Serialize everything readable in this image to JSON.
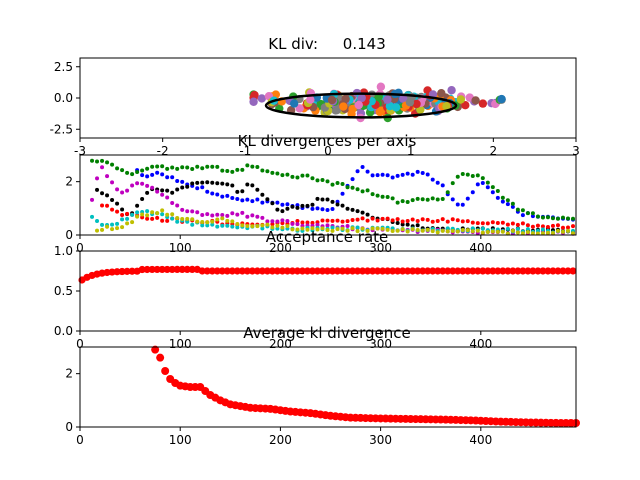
{
  "figure": {
    "background": "#ffffff"
  },
  "chart_data": [
    {
      "type": "scatter",
      "title_label": "KL div:",
      "title_value": "0.143",
      "xlim": [
        -3,
        3
      ],
      "ylim": [
        -3.2,
        3.2
      ],
      "xticks": [
        "-3",
        "-2",
        "-1",
        "0",
        "1",
        "2",
        "3"
      ],
      "yticks": [
        "2.5",
        "0.0",
        "-2.5"
      ],
      "point_colors": [
        "#1f77b4",
        "#ff7f0e",
        "#2ca02c",
        "#d62728",
        "#9467bd",
        "#8c564b",
        "#e377c2",
        "#7f7f7f",
        "#bcbd22",
        "#17becf"
      ],
      "cloud": {
        "x_center": 0.6,
        "y_center": -0.4,
        "x_spread": 1.1,
        "y_spread": 0.7,
        "count": 320
      },
      "ellipse": {
        "cx": 0.4,
        "cy": -0.6,
        "rx": 1.15,
        "ry": 0.95,
        "color": "#000000"
      }
    },
    {
      "type": "scatter",
      "title": "KL divergences per axis",
      "xlim": [
        0,
        495
      ],
      "ylim": [
        0,
        3
      ],
      "xticks": [
        "0",
        "100",
        "200",
        "300",
        "400"
      ],
      "yticks": [
        "0",
        "2"
      ],
      "series": [
        {
          "color": "#0000ff",
          "points": [
            [
              55,
              2.5
            ],
            [
              60,
              2.2
            ],
            [
              80,
              2.3
            ],
            [
              100,
              2.0
            ],
            [
              150,
              1.4
            ],
            [
              200,
              1.2
            ],
            [
              250,
              0.9
            ],
            [
              280,
              2.6
            ],
            [
              290,
              2.3
            ],
            [
              300,
              2.2
            ],
            [
              320,
              2.2
            ],
            [
              330,
              2.3
            ],
            [
              340,
              2.4
            ],
            [
              360,
              1.9
            ],
            [
              380,
              1.0
            ],
            [
              400,
              2.0
            ],
            [
              420,
              1.3
            ],
            [
              440,
              0.8
            ],
            [
              460,
              0.7
            ],
            [
              480,
              0.65
            ],
            [
              495,
              0.6
            ]
          ]
        },
        {
          "color": "#008000",
          "points": [
            [
              10,
              2.8
            ],
            [
              30,
              2.7
            ],
            [
              50,
              2.2
            ],
            [
              70,
              2.6
            ],
            [
              90,
              2.5
            ],
            [
              110,
              2.5
            ],
            [
              130,
              2.6
            ],
            [
              150,
              2.3
            ],
            [
              170,
              2.6
            ],
            [
              190,
              2.3
            ],
            [
              210,
              2.2
            ],
            [
              225,
              2.2
            ],
            [
              300,
              1.5
            ],
            [
              320,
              1.2
            ],
            [
              340,
              1.4
            ],
            [
              360,
              1.3
            ],
            [
              380,
              2.3
            ],
            [
              400,
              2.2
            ],
            [
              420,
              1.5
            ],
            [
              440,
              0.9
            ],
            [
              460,
              0.7
            ],
            [
              480,
              0.6
            ],
            [
              495,
              0.55
            ]
          ]
        },
        {
          "color": "#000000",
          "points": [
            [
              15,
              1.8
            ],
            [
              30,
              1.4
            ],
            [
              40,
              1.0
            ],
            [
              50,
              0.7
            ],
            [
              70,
              1.7
            ],
            [
              90,
              1.6
            ],
            [
              110,
              1.9
            ],
            [
              130,
              2.0
            ],
            [
              150,
              1.9
            ],
            [
              160,
              1.5
            ],
            [
              170,
              2.0
            ],
            [
              180,
              1.6
            ],
            [
              190,
              1.2
            ],
            [
              200,
              0.9
            ],
            [
              210,
              1.0
            ],
            [
              230,
              1.1
            ],
            [
              240,
              1.4
            ],
            [
              300,
              0.6
            ],
            [
              340,
              0.3
            ],
            [
              380,
              0.2
            ],
            [
              420,
              0.2
            ],
            [
              495,
              0.15
            ]
          ]
        },
        {
          "color": "#ff0000",
          "points": [
            [
              20,
              1.2
            ],
            [
              40,
              0.8
            ],
            [
              80,
              0.6
            ],
            [
              120,
              0.5
            ],
            [
              160,
              0.4
            ],
            [
              200,
              0.45
            ],
            [
              240,
              0.5
            ],
            [
              280,
              0.6
            ],
            [
              320,
              0.55
            ],
            [
              360,
              0.55
            ],
            [
              400,
              0.5
            ],
            [
              440,
              0.4
            ],
            [
              480,
              0.3
            ],
            [
              495,
              0.3
            ]
          ]
        },
        {
          "color": "#bf00bf",
          "points": [
            [
              10,
              1.0
            ],
            [
              20,
              2.6
            ],
            [
              40,
              1.5
            ],
            [
              60,
              2.0
            ],
            [
              80,
              1.6
            ],
            [
              100,
              1.0
            ],
            [
              120,
              0.8
            ],
            [
              140,
              0.7
            ],
            [
              160,
              0.8
            ],
            [
              180,
              0.6
            ],
            [
              220,
              0.4
            ],
            [
              260,
              0.3
            ],
            [
              300,
              0.2
            ],
            [
              360,
              0.15
            ],
            [
              420,
              0.1
            ],
            [
              495,
              0.1
            ]
          ]
        },
        {
          "color": "#00bfbf",
          "points": [
            [
              10,
              0.8
            ],
            [
              25,
              0.3
            ],
            [
              40,
              0.5
            ],
            [
              60,
              0.9
            ],
            [
              80,
              0.8
            ],
            [
              100,
              0.5
            ],
            [
              140,
              0.3
            ],
            [
              180,
              0.3
            ],
            [
              220,
              0.2
            ],
            [
              280,
              0.25
            ],
            [
              340,
              0.2
            ],
            [
              400,
              0.2
            ],
            [
              460,
              0.15
            ],
            [
              495,
              0.15
            ]
          ]
        },
        {
          "color": "#bfbf00",
          "points": [
            [
              15,
              0.2
            ],
            [
              40,
              0.3
            ],
            [
              60,
              0.7
            ],
            [
              80,
              0.9
            ],
            [
              100,
              0.6
            ],
            [
              120,
              0.5
            ],
            [
              140,
              0.6
            ],
            [
              160,
              0.4
            ],
            [
              200,
              0.3
            ],
            [
              240,
              0.2
            ],
            [
              300,
              0.2
            ],
            [
              360,
              0.15
            ],
            [
              420,
              0.1
            ],
            [
              495,
              0.1
            ]
          ]
        }
      ]
    },
    {
      "type": "scatter",
      "title": "Acceptance rate",
      "xlim": [
        0,
        495
      ],
      "ylim": [
        0,
        1
      ],
      "xticks": [
        "0",
        "100",
        "200",
        "300",
        "400"
      ],
      "yticks": [
        "0.0",
        "0.5",
        "1.0"
      ],
      "color": "#ff0000",
      "start": 0.62,
      "plateau": 0.75
    },
    {
      "type": "scatter",
      "title": "Average kl divergence",
      "xlim": [
        0,
        495
      ],
      "ylim": [
        0,
        3
      ],
      "xticks": [
        "0",
        "100",
        "200",
        "300",
        "400"
      ],
      "yticks": [
        "0",
        "2"
      ],
      "color": "#ff0000",
      "points": [
        [
          75,
          2.9
        ],
        [
          80,
          2.6
        ],
        [
          85,
          2.1
        ],
        [
          90,
          1.8
        ],
        [
          95,
          1.65
        ],
        [
          100,
          1.55
        ],
        [
          110,
          1.5
        ],
        [
          120,
          1.5
        ],
        [
          130,
          1.2
        ],
        [
          140,
          1.0
        ],
        [
          150,
          0.85
        ],
        [
          170,
          0.72
        ],
        [
          190,
          0.68
        ],
        [
          210,
          0.58
        ],
        [
          230,
          0.52
        ],
        [
          250,
          0.42
        ],
        [
          270,
          0.35
        ],
        [
          300,
          0.32
        ],
        [
          330,
          0.3
        ],
        [
          360,
          0.28
        ],
        [
          390,
          0.25
        ],
        [
          420,
          0.2
        ],
        [
          450,
          0.17
        ],
        [
          480,
          0.15
        ],
        [
          495,
          0.15
        ]
      ]
    }
  ]
}
